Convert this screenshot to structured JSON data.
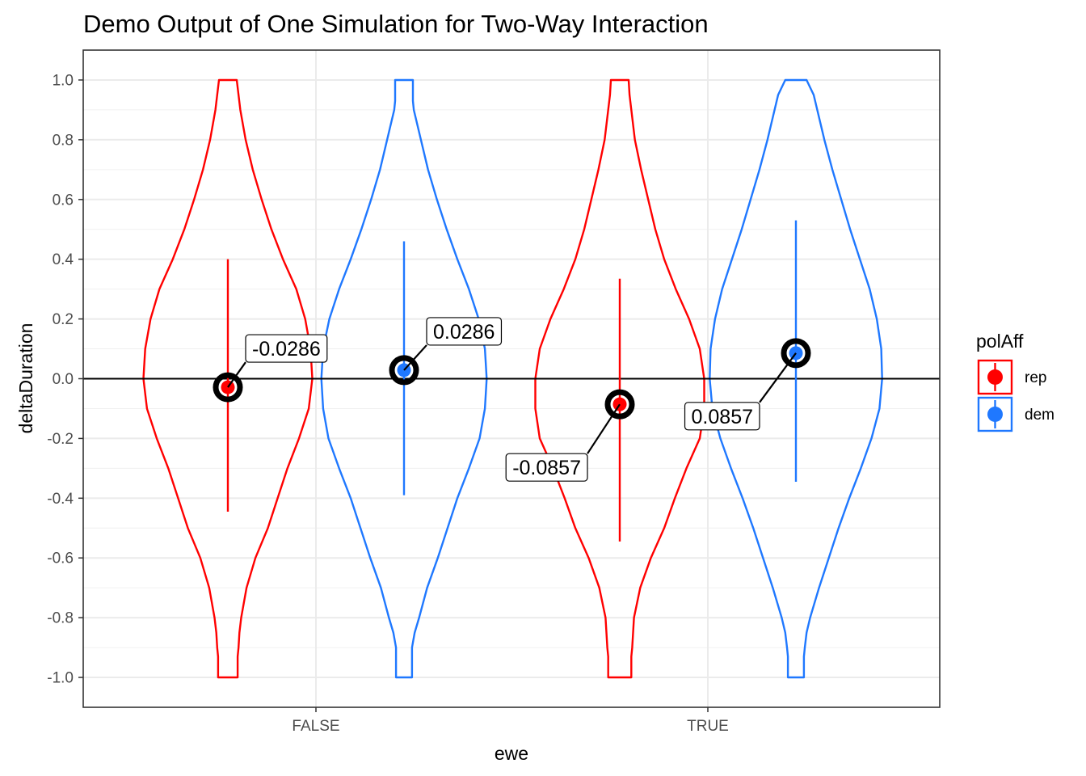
{
  "chart_data": {
    "type": "violin",
    "title": "Demo Output of One Simulation for Two-Way Interaction",
    "xlabel": "ewe",
    "ylabel": "deltaDuration",
    "categories": [
      "FALSE",
      "TRUE"
    ],
    "ylim": [
      -1.1,
      1.1
    ],
    "yticks": [
      "-1.0",
      "-0.8",
      "-0.6",
      "-0.4",
      "-0.2",
      "0.0",
      "0.2",
      "0.4",
      "0.6",
      "0.8",
      "1.0"
    ],
    "grid": true,
    "hline_y": 0,
    "legend": {
      "title": "polAff",
      "position": "right",
      "entries": [
        {
          "label": "rep",
          "color": "#ff0000"
        },
        {
          "label": "dem",
          "color": "#1f78ff"
        }
      ]
    },
    "series": [
      {
        "name": "rep",
        "color": "#ff0000",
        "points": [
          {
            "x": "FALSE",
            "mean": -0.0286,
            "low": -0.445,
            "high": 0.4,
            "label": "-0.0286"
          },
          {
            "x": "TRUE",
            "mean": -0.0857,
            "low": -0.545,
            "high": 0.335,
            "label": "-0.0857"
          }
        ]
      },
      {
        "name": "dem",
        "color": "#1f78ff",
        "points": [
          {
            "x": "FALSE",
            "mean": 0.0286,
            "low": -0.39,
            "high": 0.46,
            "label": "0.0286"
          },
          {
            "x": "TRUE",
            "mean": 0.0857,
            "low": -0.345,
            "high": 0.53,
            "label": "0.0857"
          }
        ]
      }
    ],
    "violins": [
      {
        "series": "rep",
        "x": "FALSE",
        "profile": [
          [
            -1.0,
            0.11
          ],
          [
            -0.97,
            0.11
          ],
          [
            -0.93,
            0.11
          ],
          [
            -0.9,
            0.12
          ],
          [
            -0.85,
            0.13
          ],
          [
            -0.8,
            0.15
          ],
          [
            -0.7,
            0.21
          ],
          [
            -0.6,
            0.31
          ],
          [
            -0.5,
            0.45
          ],
          [
            -0.4,
            0.56
          ],
          [
            -0.3,
            0.67
          ],
          [
            -0.2,
            0.8
          ],
          [
            -0.1,
            0.91
          ],
          [
            0.0,
            0.95
          ],
          [
            0.1,
            0.93
          ],
          [
            0.2,
            0.87
          ],
          [
            0.3,
            0.77
          ],
          [
            0.4,
            0.62
          ],
          [
            0.5,
            0.49
          ],
          [
            0.6,
            0.38
          ],
          [
            0.7,
            0.28
          ],
          [
            0.8,
            0.2
          ],
          [
            0.9,
            0.14
          ],
          [
            0.95,
            0.12
          ],
          [
            1.0,
            0.1
          ]
        ]
      },
      {
        "series": "dem",
        "x": "FALSE",
        "profile": [
          [
            -1.0,
            0.09
          ],
          [
            -0.97,
            0.09
          ],
          [
            -0.93,
            0.09
          ],
          [
            -0.9,
            0.09
          ],
          [
            -0.85,
            0.12
          ],
          [
            -0.8,
            0.17
          ],
          [
            -0.7,
            0.26
          ],
          [
            -0.6,
            0.38
          ],
          [
            -0.5,
            0.49
          ],
          [
            -0.4,
            0.6
          ],
          [
            -0.3,
            0.73
          ],
          [
            -0.2,
            0.85
          ],
          [
            -0.1,
            0.91
          ],
          [
            0.0,
            0.93
          ],
          [
            0.1,
            0.91
          ],
          [
            0.2,
            0.84
          ],
          [
            0.3,
            0.73
          ],
          [
            0.4,
            0.6
          ],
          [
            0.5,
            0.48
          ],
          [
            0.6,
            0.37
          ],
          [
            0.7,
            0.27
          ],
          [
            0.8,
            0.19
          ],
          [
            0.85,
            0.15
          ],
          [
            0.9,
            0.11
          ],
          [
            0.93,
            0.1
          ],
          [
            0.97,
            0.1
          ],
          [
            1.0,
            0.1
          ]
        ]
      },
      {
        "series": "rep",
        "x": "TRUE",
        "profile": [
          [
            -1.0,
            0.13
          ],
          [
            -0.97,
            0.13
          ],
          [
            -0.93,
            0.13
          ],
          [
            -0.9,
            0.14
          ],
          [
            -0.85,
            0.15
          ],
          [
            -0.8,
            0.16
          ],
          [
            -0.7,
            0.23
          ],
          [
            -0.6,
            0.35
          ],
          [
            -0.5,
            0.5
          ],
          [
            -0.4,
            0.62
          ],
          [
            -0.3,
            0.75
          ],
          [
            -0.2,
            0.9
          ],
          [
            -0.1,
            0.95
          ],
          [
            0.0,
            0.95
          ],
          [
            0.1,
            0.9
          ],
          [
            0.2,
            0.78
          ],
          [
            0.3,
            0.63
          ],
          [
            0.4,
            0.5
          ],
          [
            0.5,
            0.4
          ],
          [
            0.6,
            0.32
          ],
          [
            0.7,
            0.24
          ],
          [
            0.8,
            0.17
          ],
          [
            0.9,
            0.13
          ],
          [
            0.95,
            0.11
          ],
          [
            1.0,
            0.1
          ]
        ]
      },
      {
        "series": "dem",
        "x": "TRUE",
        "profile": [
          [
            -1.0,
            0.09
          ],
          [
            -0.97,
            0.09
          ],
          [
            -0.93,
            0.09
          ],
          [
            -0.9,
            0.1
          ],
          [
            -0.85,
            0.12
          ],
          [
            -0.8,
            0.16
          ],
          [
            -0.7,
            0.26
          ],
          [
            -0.6,
            0.37
          ],
          [
            -0.5,
            0.48
          ],
          [
            -0.4,
            0.6
          ],
          [
            -0.3,
            0.73
          ],
          [
            -0.2,
            0.85
          ],
          [
            -0.1,
            0.94
          ],
          [
            0.0,
            0.97
          ],
          [
            0.1,
            0.96
          ],
          [
            0.2,
            0.91
          ],
          [
            0.3,
            0.83
          ],
          [
            0.4,
            0.72
          ],
          [
            0.5,
            0.61
          ],
          [
            0.6,
            0.51
          ],
          [
            0.7,
            0.41
          ],
          [
            0.8,
            0.32
          ],
          [
            0.9,
            0.24
          ],
          [
            0.95,
            0.2
          ],
          [
            1.0,
            0.12
          ]
        ]
      }
    ]
  }
}
